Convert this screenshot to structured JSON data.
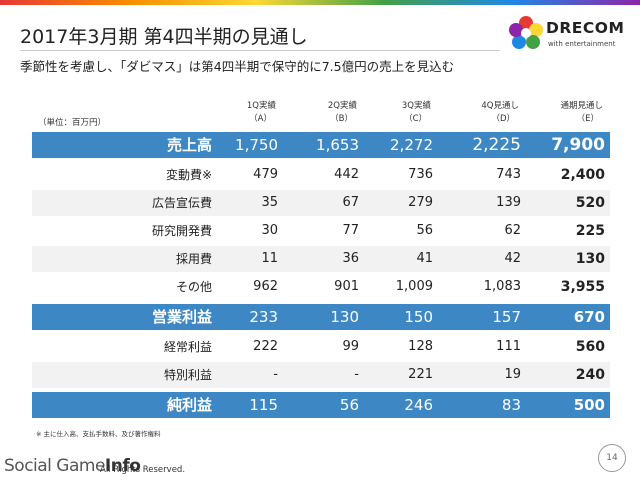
{
  "header": {
    "title": "2017年3月期 第4四半期の見通し",
    "subtitle": "季節性を考慮し、「ダビマス」は第4四半期で保守的に7.5億円の売上を見込む"
  },
  "logo": {
    "name": "DRECOM",
    "tagline": "with entertainment"
  },
  "table": {
    "unit": "（単位：百万円）",
    "columns": [
      {
        "line1": "1Q実績",
        "line2": "（A）"
      },
      {
        "line1": "2Q実績",
        "line2": "（B）"
      },
      {
        "line1": "3Q実績",
        "line2": "（C）"
      },
      {
        "line1": "4Q見通し",
        "line2": "（D）"
      },
      {
        "line1": "通期見通し",
        "line2": "（E）"
      }
    ],
    "rows": [
      {
        "label": "売上高",
        "values": [
          "1,750",
          "1,653",
          "2,272",
          "2,225",
          "7,900"
        ]
      },
      {
        "label": "変動費※",
        "values": [
          "479",
          "442",
          "736",
          "743",
          "2,400"
        ]
      },
      {
        "label": "広告宣伝費",
        "values": [
          "35",
          "67",
          "279",
          "139",
          "520"
        ]
      },
      {
        "label": "研究開発費",
        "values": [
          "30",
          "77",
          "56",
          "62",
          "225"
        ]
      },
      {
        "label": "採用費",
        "values": [
          "11",
          "36",
          "41",
          "42",
          "130"
        ]
      },
      {
        "label": "その他",
        "values": [
          "962",
          "901",
          "1,009",
          "1,083",
          "3,955"
        ]
      },
      {
        "label": "営業利益",
        "values": [
          "233",
          "130",
          "150",
          "157",
          "670"
        ]
      },
      {
        "label": "経常利益",
        "values": [
          "222",
          "99",
          "128",
          "111",
          "560"
        ]
      },
      {
        "label": "特別利益",
        "values": [
          "-",
          "-",
          "221",
          "19",
          "240"
        ]
      },
      {
        "label": "純利益",
        "values": [
          "115",
          "56",
          "246",
          "83",
          "500"
        ]
      }
    ]
  },
  "footer": {
    "note": "※ 主に仕入高、支払手数料、及び著作権料",
    "page_number": "14",
    "watermark_a": "Social Game",
    "watermark_b": "Info",
    "copyright": "All Rights Reserved."
  },
  "colors": {
    "highlight_row": "#3d87c4",
    "alt_row": "#f2f2f2"
  }
}
